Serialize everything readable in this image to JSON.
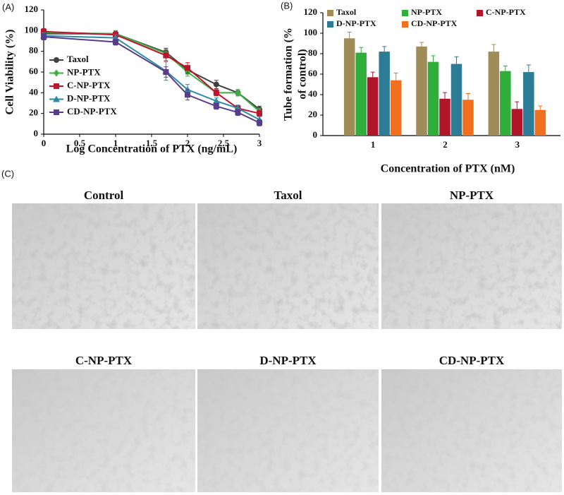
{
  "chart_data": [
    {
      "type": "line",
      "panel_label": "(A)",
      "x_label": "Log Concentration of PTX (ng/mL)",
      "y_label": "Cell Viability (%)",
      "x": [
        0,
        1,
        1.7,
        2,
        2.4,
        2.7,
        3
      ],
      "xlim": [
        0,
        3
      ],
      "xticks": [
        0,
        0.5,
        1,
        1.5,
        2,
        2.5,
        3
      ],
      "ylim": [
        0,
        120
      ],
      "yticks": [
        0,
        20,
        40,
        60,
        80,
        100,
        120
      ],
      "series": [
        {
          "name": "Taxol",
          "color": "#404040",
          "marker": "circle",
          "values": [
            97,
            97,
            79,
            62,
            48,
            40,
            24
          ],
          "errors": [
            3,
            3,
            4,
            4,
            4,
            3,
            3
          ]
        },
        {
          "name": "NP-PTX",
          "color": "#3cb043",
          "marker": "diamond",
          "values": [
            98,
            97,
            78,
            60,
            40,
            40,
            22
          ],
          "errors": [
            3,
            3,
            4,
            4,
            3,
            3,
            3
          ]
        },
        {
          "name": "C-NP-PTX",
          "color": "#c0142c",
          "marker": "square",
          "values": [
            99,
            96,
            76,
            64,
            40,
            25,
            20
          ],
          "errors": [
            3,
            3,
            5,
            5,
            3,
            3,
            3
          ]
        },
        {
          "name": "D-NP-PTX",
          "color": "#2e8ba6",
          "marker": "triangle",
          "values": [
            95,
            93,
            61,
            43,
            32,
            25,
            14
          ],
          "errors": [
            3,
            3,
            9,
            5,
            3,
            3,
            3
          ]
        },
        {
          "name": "CD-NP-PTX",
          "color": "#5a3d8a",
          "marker": "square",
          "values": [
            94,
            89,
            60,
            38,
            27,
            21,
            11
          ],
          "errors": [
            3,
            3,
            5,
            5,
            3,
            3,
            3
          ]
        }
      ]
    },
    {
      "type": "bar",
      "panel_label": "(B)",
      "x_label": "Concentration of PTX (nM)",
      "y_label": [
        "Tube formation (%",
        "of control)"
      ],
      "categories": [
        "1",
        "2",
        "3"
      ],
      "ylim": [
        0,
        120
      ],
      "yticks": [
        0,
        20,
        40,
        60,
        80,
        100,
        120
      ],
      "series": [
        {
          "name": "Taxol",
          "color": "#a08c58",
          "values": [
            95,
            87,
            82
          ],
          "errors": [
            6,
            4,
            7
          ]
        },
        {
          "name": "NP-PTX",
          "color": "#2fae3a",
          "values": [
            81,
            72,
            63
          ],
          "errors": [
            5,
            6,
            5
          ]
        },
        {
          "name": "C-NP-PTX",
          "color": "#b0152a",
          "values": [
            57,
            36,
            26
          ],
          "errors": [
            5,
            6,
            7
          ]
        },
        {
          "name": "D-NP-PTX",
          "color": "#2d7c96",
          "values": [
            82,
            70,
            62
          ],
          "errors": [
            5,
            7,
            7
          ]
        },
        {
          "name": "CD-NP-PTX",
          "color": "#f07020",
          "values": [
            54,
            35,
            25
          ],
          "errors": [
            7,
            6,
            4
          ]
        }
      ]
    }
  ],
  "panel_c": {
    "label": "(C)",
    "images": [
      "Control",
      "Taxol",
      "NP-PTX",
      "C-NP-PTX",
      "D-NP-PTX",
      "CD-NP-PTX"
    ]
  }
}
